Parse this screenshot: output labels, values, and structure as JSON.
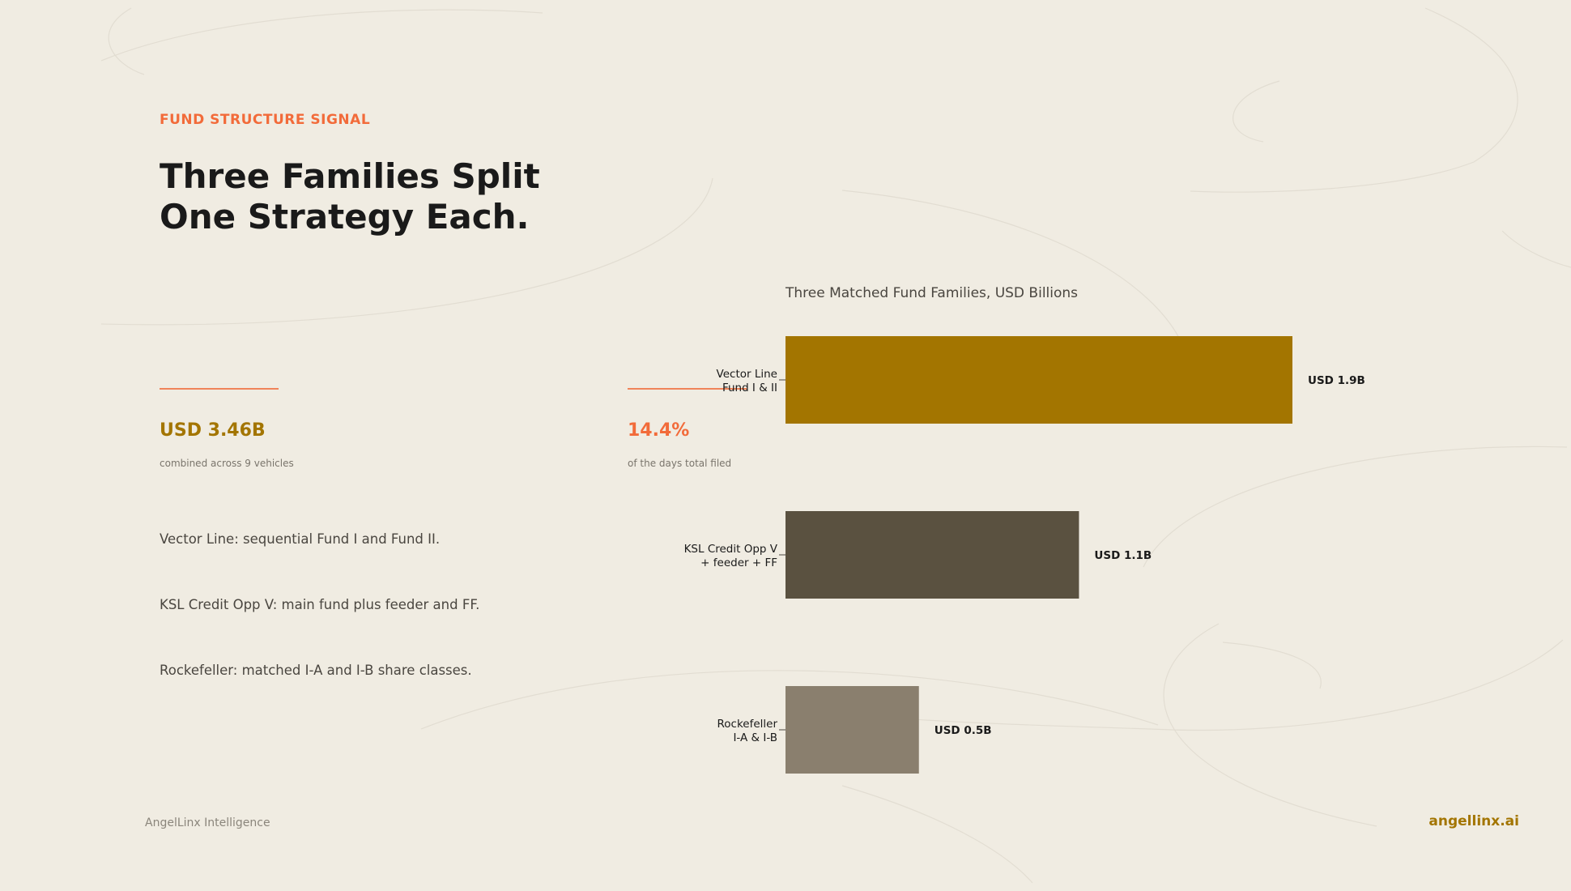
{
  "colors": {
    "background": "#f0ece2",
    "accent_orange": "#f26b3a",
    "accent_gold": "#a37500",
    "text_dark": "#1a1a1a",
    "text_muted": "#7a756c"
  },
  "header": {
    "eyebrow": "FUND STRUCTURE SIGNAL",
    "headline_line1": "Three Families Split",
    "headline_line2": "One Strategy Each."
  },
  "stats": [
    {
      "value": "USD 3.46B",
      "caption": "combined across 9 vehicles",
      "color": "#a37500"
    },
    {
      "value": "14.4%",
      "caption": "of the days total filed",
      "color": "#f26b3a"
    }
  ],
  "bullets": [
    "Vector Line: sequential Fund I and Fund II.",
    "KSL Credit Opp V: main fund plus feeder and FF.",
    "Rockefeller: matched I-A and I-B share classes."
  ],
  "chart_data": {
    "type": "bar",
    "orientation": "horizontal",
    "title": "Three Matched Fund Families, USD Billions",
    "categories": [
      [
        "Vector Line",
        "Fund I & II"
      ],
      [
        "KSL Credit Opp V",
        "+ feeder + FF"
      ],
      [
        "Rockefeller",
        "I-A & I-B"
      ]
    ],
    "values": [
      1.9,
      1.1,
      0.5
    ],
    "data_labels": [
      "USD 1.9B",
      "USD 1.1B",
      "USD 0.5B"
    ],
    "colors": [
      "#a37500",
      "#5a5140",
      "#8a7f6e"
    ],
    "xlim": [
      0,
      1.9
    ],
    "grid": false
  },
  "footer": {
    "left": "AngelLinx Intelligence",
    "right": "angellinx.ai"
  }
}
